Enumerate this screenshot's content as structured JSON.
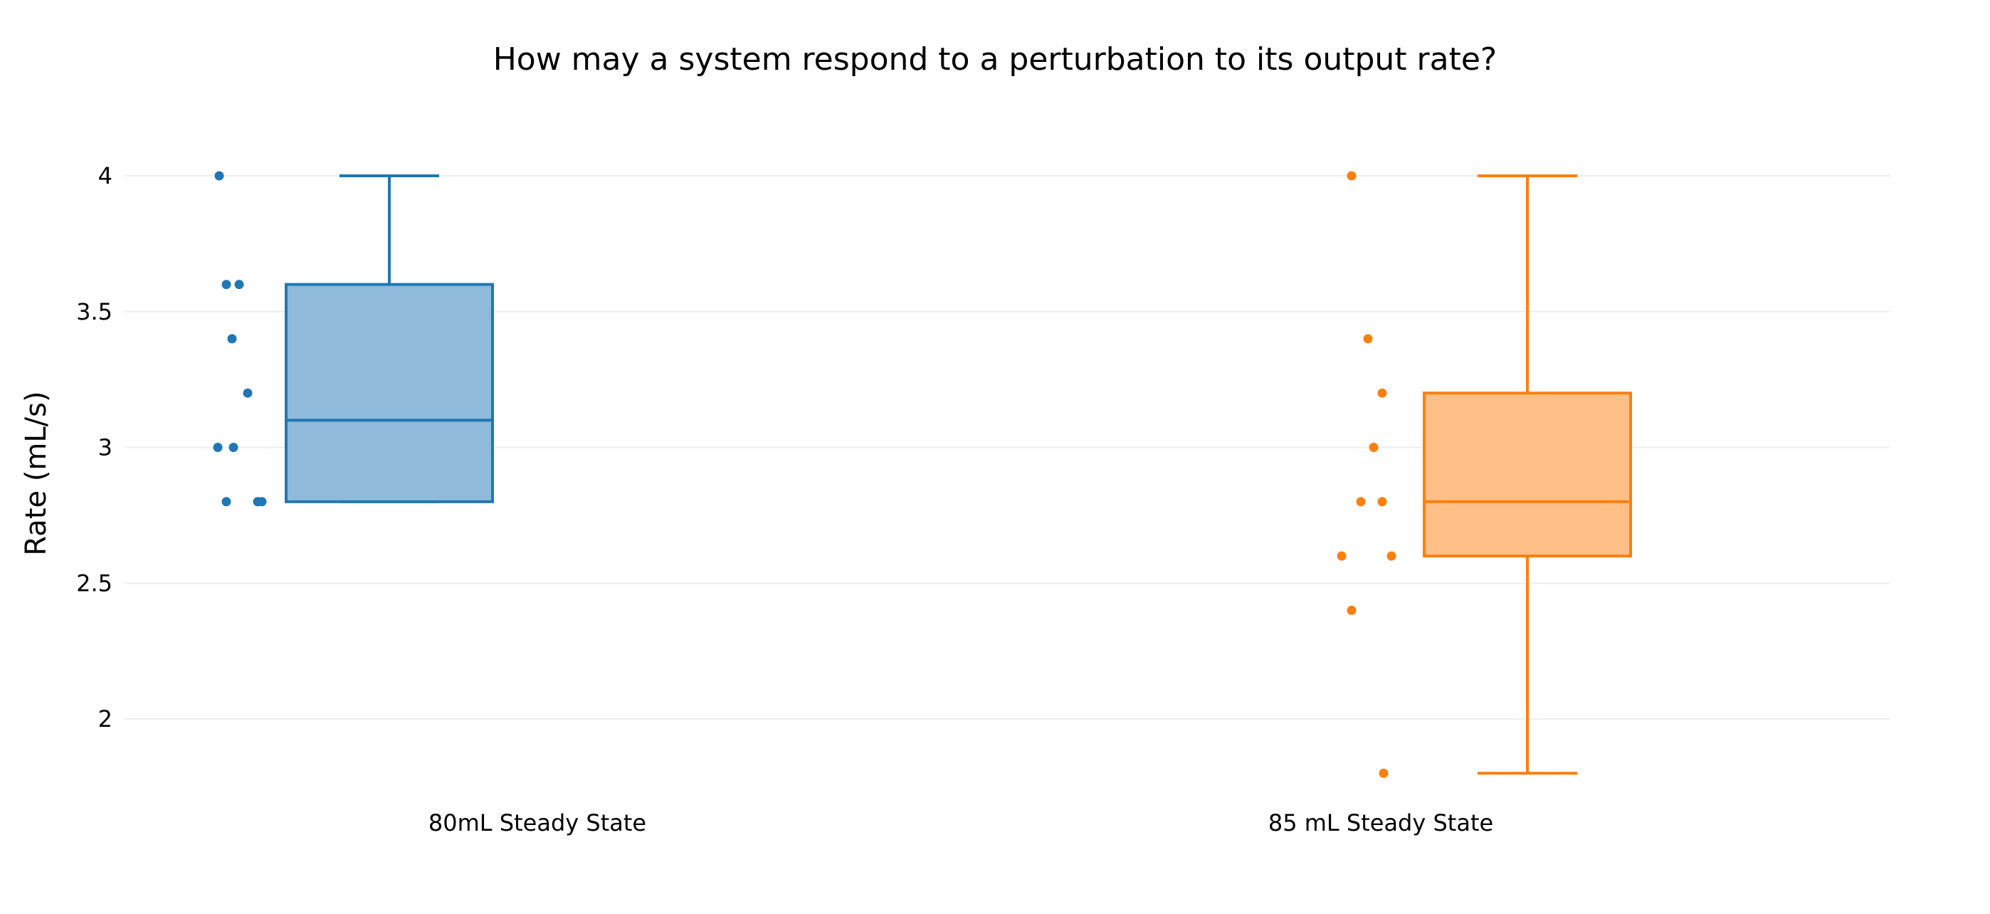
{
  "chart_data": {
    "type": "box",
    "title": "How may a system respond to a perturbation to its output rate?",
    "xlabel": "",
    "ylabel": "Rate (mL/s)",
    "ylim": [
      1.75,
      4.15
    ],
    "yticks": [
      2,
      2.5,
      3,
      3.5,
      4
    ],
    "ytick_labels": [
      "2",
      "2.5",
      "3",
      "3.5",
      "4"
    ],
    "grid": true,
    "legend": "none",
    "boxpoints": "all, shown to the left of each box",
    "categories": [
      "80mL Steady State",
      "85 mL Steady State"
    ],
    "series": [
      {
        "category": "80mL Steady State",
        "color": "#1f77b4",
        "fill": "#8fbadb",
        "min": 2.8,
        "q1": 2.8,
        "median": 3.1,
        "q3": 3.6,
        "max": 4.0,
        "points": [
          4.0,
          3.6,
          3.6,
          3.4,
          3.2,
          3.0,
          3.0,
          2.8,
          2.8,
          2.8
        ]
      },
      {
        "category": "85 mL Steady State",
        "color": "#ff7f0e",
        "fill": "#ffbf86",
        "min": 1.8,
        "q1": 2.6,
        "median": 2.8,
        "q3": 3.2,
        "max": 4.0,
        "points": [
          4.0,
          3.4,
          3.2,
          3.0,
          2.8,
          2.8,
          2.6,
          2.6,
          2.4,
          1.8
        ]
      }
    ]
  }
}
